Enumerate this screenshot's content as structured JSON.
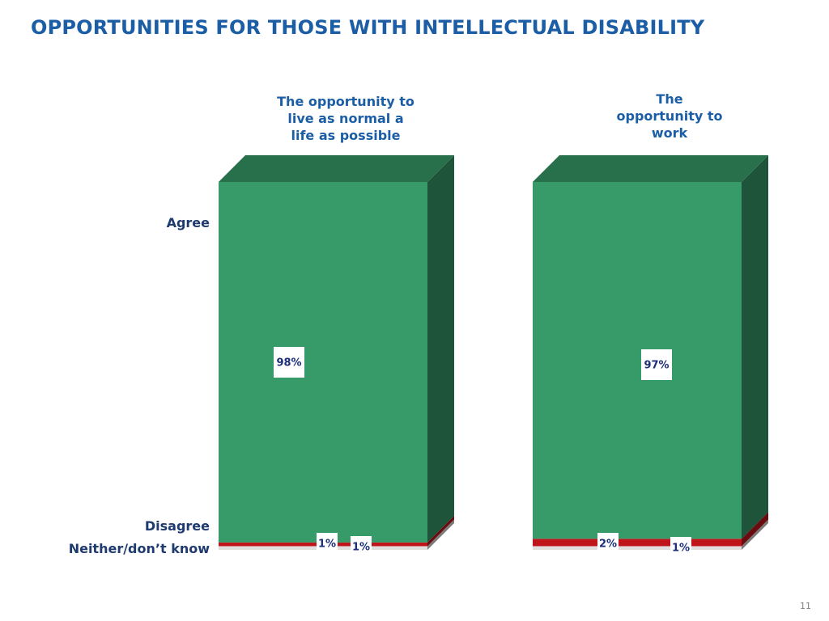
{
  "slide": {
    "title": "OPPORTUNITIES FOR THOSE WITH INTELLECTUAL DISABILITY",
    "page_number": "11"
  },
  "chart_data": {
    "type": "bar",
    "stacked": true,
    "style": "3d",
    "categories": [
      "The opportunity to\nlive as normal a\nlife as possible",
      "The\nopportunity to\nwork"
    ],
    "series": [
      {
        "name": "Agree",
        "values": [
          98,
          97
        ],
        "color": "#379b69",
        "labels": [
          "98%",
          "97%"
        ]
      },
      {
        "name": "Disagree",
        "values": [
          1,
          2
        ],
        "color": "#c0141b",
        "labels": [
          "1%",
          "2%"
        ]
      },
      {
        "name": "Neither/don’t know",
        "values": [
          1,
          1
        ],
        "color": "#e3dede",
        "labels": [
          "1%",
          "1%"
        ]
      }
    ],
    "ylim": [
      0,
      100
    ],
    "legend_position": "left"
  }
}
